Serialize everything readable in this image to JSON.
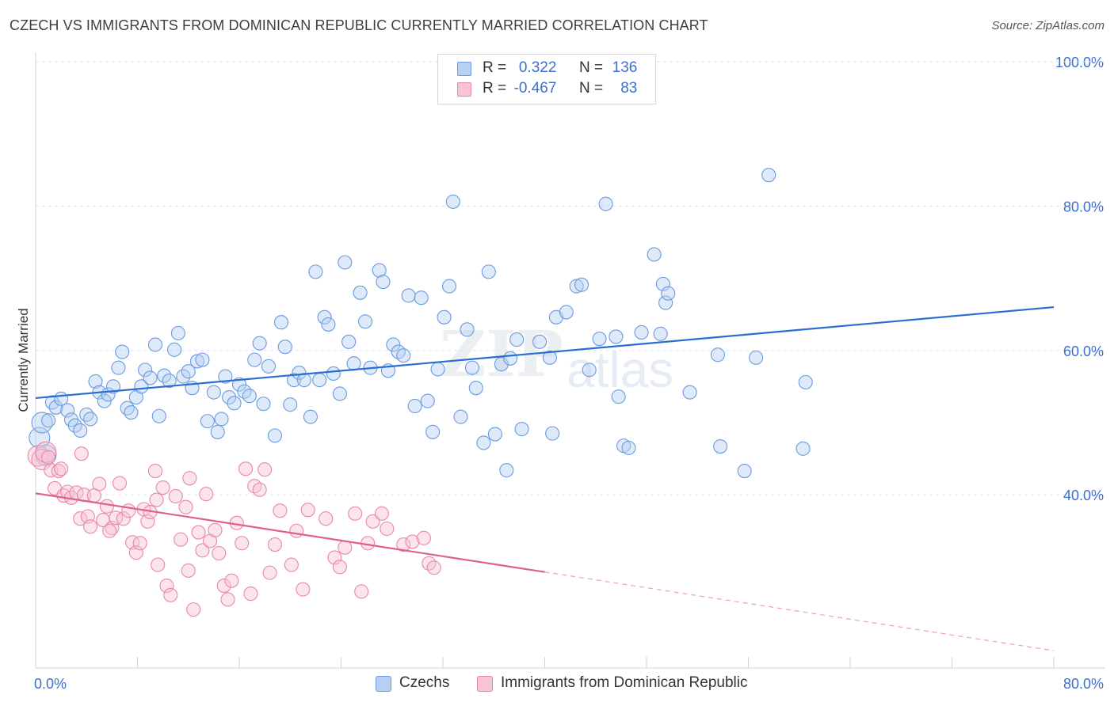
{
  "title": "CZECH VS IMMIGRANTS FROM DOMINICAN REPUBLIC CURRENTLY MARRIED CORRELATION CHART",
  "source": "Source: ZipAtlas.com",
  "watermark": {
    "zip": "ZIP",
    "atlas": "atlas"
  },
  "legend": {
    "czech": {
      "r_label": "R =",
      "r_value": "0.322",
      "n_label": "N =",
      "n_value": "136"
    },
    "dominican": {
      "r_label": "R =",
      "r_value": "-0.467",
      "n_label": "N =",
      "n_value": "83"
    }
  },
  "bottom_legend": {
    "czech": "Czechs",
    "dominican": "Immigrants from Dominican Republic"
  },
  "colors": {
    "czech": "#6a9be0",
    "czech_fill": "#b6cff2",
    "czech_line": "#2a6fd0",
    "dominican": "#e888a8",
    "dominican_fill": "#f6c4d4",
    "dominican_line": "#e0608c",
    "axis_text": "#3a6fcf"
  },
  "chart_data": {
    "type": "scatter",
    "title": "CZECH VS IMMIGRANTS FROM DOMINICAN REPUBLIC CURRENTLY MARRIED CORRELATION CHART",
    "xlabel": "",
    "ylabel": "Currently Married",
    "xlim": [
      0,
      80
    ],
    "ylim": [
      16,
      100
    ],
    "x_tick_labels": [
      "0.0%",
      "80.0%"
    ],
    "y_ticks": [
      40,
      60,
      80,
      100
    ],
    "y_tick_labels": [
      "40.0%",
      "60.0%",
      "80.0%",
      "100.0%"
    ],
    "grid": true,
    "series": [
      {
        "name": "Czechs",
        "trend": {
          "x0": 0,
          "y0": 53.4,
          "x1": 80,
          "y1": 66.0
        },
        "points": [
          [
            0.3,
            47.9
          ],
          [
            0.5,
            50.0
          ],
          [
            0.8,
            45.5
          ],
          [
            1.0,
            50.3
          ],
          [
            1.3,
            52.8
          ],
          [
            1.6,
            52.1
          ],
          [
            2.0,
            53.3
          ],
          [
            2.5,
            51.7
          ],
          [
            2.8,
            50.4
          ],
          [
            3.1,
            49.6
          ],
          [
            3.5,
            48.9
          ],
          [
            4.0,
            51.1
          ],
          [
            4.3,
            50.5
          ],
          [
            4.7,
            55.7
          ],
          [
            5.0,
            54.2
          ],
          [
            5.4,
            53.0
          ],
          [
            5.7,
            53.9
          ],
          [
            6.1,
            55.0
          ],
          [
            6.5,
            57.6
          ],
          [
            6.8,
            59.8
          ],
          [
            7.2,
            52.0
          ],
          [
            7.5,
            51.4
          ],
          [
            7.9,
            53.5
          ],
          [
            8.3,
            55.0
          ],
          [
            8.6,
            57.3
          ],
          [
            9.0,
            56.2
          ],
          [
            9.4,
            60.8
          ],
          [
            9.7,
            50.9
          ],
          [
            10.1,
            56.5
          ],
          [
            10.5,
            55.8
          ],
          [
            10.9,
            60.1
          ],
          [
            11.2,
            62.4
          ],
          [
            11.6,
            56.4
          ],
          [
            12.0,
            57.1
          ],
          [
            12.3,
            54.8
          ],
          [
            12.7,
            58.5
          ],
          [
            13.1,
            58.7
          ],
          [
            13.5,
            50.2
          ],
          [
            14.0,
            54.2
          ],
          [
            14.3,
            48.7
          ],
          [
            14.6,
            50.5
          ],
          [
            14.9,
            56.4
          ],
          [
            15.2,
            53.5
          ],
          [
            15.6,
            52.7
          ],
          [
            16.0,
            55.3
          ],
          [
            16.4,
            54.3
          ],
          [
            16.8,
            53.7
          ],
          [
            17.2,
            58.7
          ],
          [
            17.6,
            61.0
          ],
          [
            17.9,
            52.6
          ],
          [
            18.3,
            57.8
          ],
          [
            18.8,
            48.2
          ],
          [
            19.3,
            63.9
          ],
          [
            19.6,
            60.5
          ],
          [
            20.0,
            52.5
          ],
          [
            20.3,
            55.9
          ],
          [
            20.7,
            56.9
          ],
          [
            21.1,
            55.9
          ],
          [
            21.6,
            50.8
          ],
          [
            22.0,
            70.9
          ],
          [
            22.3,
            55.9
          ],
          [
            22.7,
            64.6
          ],
          [
            23.0,
            63.6
          ],
          [
            23.4,
            56.8
          ],
          [
            23.9,
            54.0
          ],
          [
            24.3,
            72.2
          ],
          [
            24.6,
            61.2
          ],
          [
            25.0,
            58.2
          ],
          [
            25.5,
            68.0
          ],
          [
            25.9,
            64.0
          ],
          [
            26.3,
            57.6
          ],
          [
            27.0,
            71.1
          ],
          [
            27.3,
            69.5
          ],
          [
            27.7,
            57.2
          ],
          [
            28.1,
            60.8
          ],
          [
            28.5,
            59.8
          ],
          [
            28.9,
            59.3
          ],
          [
            29.3,
            67.6
          ],
          [
            29.8,
            52.3
          ],
          [
            30.3,
            67.3
          ],
          [
            30.8,
            53.0
          ],
          [
            31.2,
            48.7
          ],
          [
            31.6,
            57.4
          ],
          [
            32.1,
            64.6
          ],
          [
            32.5,
            68.9
          ],
          [
            32.8,
            80.6
          ],
          [
            33.4,
            50.8
          ],
          [
            33.9,
            62.9
          ],
          [
            34.3,
            57.6
          ],
          [
            34.6,
            54.8
          ],
          [
            35.2,
            47.2
          ],
          [
            35.6,
            70.9
          ],
          [
            36.1,
            48.4
          ],
          [
            36.6,
            58.1
          ],
          [
            37.0,
            43.4
          ],
          [
            37.3,
            58.9
          ],
          [
            37.8,
            61.5
          ],
          [
            38.2,
            49.1
          ],
          [
            39.6,
            61.2
          ],
          [
            40.4,
            59.0
          ],
          [
            40.6,
            48.5
          ],
          [
            40.9,
            64.6
          ],
          [
            41.7,
            65.3
          ],
          [
            42.5,
            68.9
          ],
          [
            42.9,
            69.1
          ],
          [
            43.5,
            57.3
          ],
          [
            44.3,
            61.6
          ],
          [
            44.8,
            80.3
          ],
          [
            45.6,
            61.9
          ],
          [
            45.8,
            53.6
          ],
          [
            46.2,
            46.8
          ],
          [
            46.6,
            46.5
          ],
          [
            47.6,
            62.5
          ],
          [
            48.6,
            73.3
          ],
          [
            49.1,
            62.3
          ],
          [
            49.3,
            69.2
          ],
          [
            49.5,
            66.6
          ],
          [
            49.7,
            67.9
          ],
          [
            51.4,
            54.2
          ],
          [
            53.6,
            59.4
          ],
          [
            53.8,
            46.7
          ],
          [
            55.7,
            43.3
          ],
          [
            56.6,
            59.0
          ],
          [
            57.6,
            84.3
          ],
          [
            60.3,
            46.4
          ],
          [
            60.5,
            55.6
          ]
        ]
      },
      {
        "name": "Immigrants from Dominican Republic",
        "trend": {
          "x0": 0,
          "y0": 40.2,
          "x1": 40,
          "y1": 29.3,
          "dash_x1": 80,
          "dash_y1": 18.4
        },
        "points": [
          [
            0.2,
            45.4
          ],
          [
            0.5,
            44.9
          ],
          [
            0.8,
            45.9
          ],
          [
            1.2,
            43.4
          ],
          [
            1.5,
            40.9
          ],
          [
            1.8,
            43.3
          ],
          [
            2.2,
            39.9
          ],
          [
            2.5,
            40.4
          ],
          [
            2.8,
            39.6
          ],
          [
            3.2,
            40.3
          ],
          [
            3.5,
            36.7
          ],
          [
            3.8,
            40.0
          ],
          [
            4.1,
            37.0
          ],
          [
            4.3,
            35.6
          ],
          [
            4.6,
            39.9
          ],
          [
            5.0,
            41.5
          ],
          [
            5.3,
            36.5
          ],
          [
            5.6,
            38.4
          ],
          [
            6.0,
            35.4
          ],
          [
            6.3,
            36.8
          ],
          [
            6.6,
            41.6
          ],
          [
            6.9,
            36.7
          ],
          [
            7.3,
            37.8
          ],
          [
            7.6,
            33.4
          ],
          [
            7.9,
            32.0
          ],
          [
            8.2,
            33.3
          ],
          [
            8.5,
            38.0
          ],
          [
            8.8,
            36.3
          ],
          [
            9.0,
            37.6
          ],
          [
            9.4,
            43.3
          ],
          [
            9.6,
            30.3
          ],
          [
            10.0,
            41.0
          ],
          [
            10.3,
            27.4
          ],
          [
            10.6,
            26.1
          ],
          [
            11.0,
            39.8
          ],
          [
            11.4,
            33.8
          ],
          [
            11.8,
            38.3
          ],
          [
            12.1,
            42.3
          ],
          [
            12.4,
            24.1
          ],
          [
            12.8,
            34.8
          ],
          [
            13.1,
            32.3
          ],
          [
            13.4,
            40.1
          ],
          [
            13.7,
            33.6
          ],
          [
            14.1,
            35.1
          ],
          [
            14.4,
            31.9
          ],
          [
            14.8,
            27.4
          ],
          [
            15.1,
            25.5
          ],
          [
            15.4,
            28.1
          ],
          [
            15.8,
            36.1
          ],
          [
            16.2,
            33.3
          ],
          [
            16.5,
            43.6
          ],
          [
            16.9,
            26.3
          ],
          [
            17.2,
            41.2
          ],
          [
            17.6,
            40.7
          ],
          [
            18.0,
            43.5
          ],
          [
            18.4,
            29.2
          ],
          [
            18.8,
            33.1
          ],
          [
            19.2,
            37.8
          ],
          [
            20.1,
            30.3
          ],
          [
            21.0,
            26.9
          ],
          [
            21.4,
            37.9
          ],
          [
            22.8,
            36.7
          ],
          [
            23.5,
            31.3
          ],
          [
            23.9,
            30.0
          ],
          [
            24.3,
            32.7
          ],
          [
            25.1,
            37.4
          ],
          [
            25.6,
            26.6
          ],
          [
            26.1,
            33.3
          ],
          [
            26.5,
            36.3
          ],
          [
            27.2,
            37.4
          ],
          [
            27.6,
            35.3
          ],
          [
            28.9,
            33.1
          ],
          [
            29.6,
            33.5
          ],
          [
            30.5,
            34.0
          ],
          [
            30.9,
            30.5
          ],
          [
            31.3,
            29.9
          ],
          [
            5.8,
            35.0
          ],
          [
            3.6,
            45.7
          ],
          [
            2.0,
            43.6
          ],
          [
            9.5,
            39.3
          ],
          [
            12.0,
            29.5
          ],
          [
            20.5,
            35.0
          ],
          [
            1.0,
            45.2
          ]
        ]
      }
    ]
  }
}
